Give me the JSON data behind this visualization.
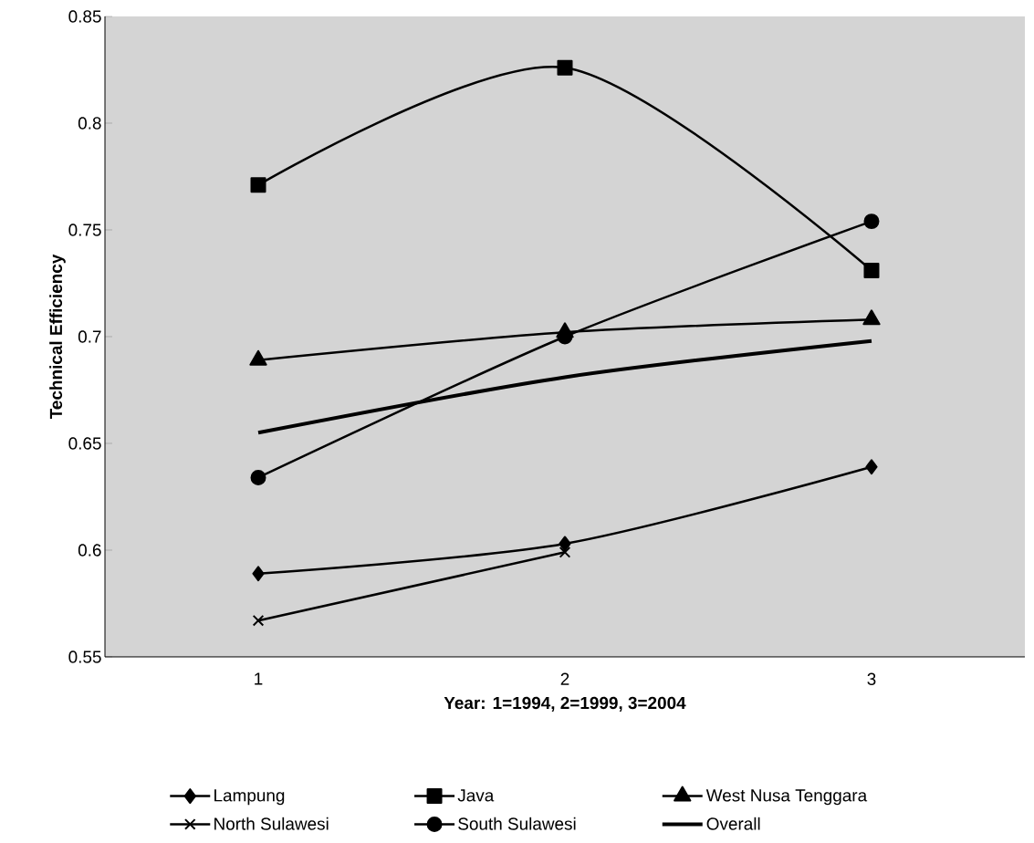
{
  "chart_data": {
    "type": "line",
    "xlabel": "Year: 1=1994, 2=1999, 3=2004",
    "ylabel": "Technical Efficiency",
    "categories": [
      "1",
      "2",
      "3"
    ],
    "ylim": [
      0.55,
      0.85
    ],
    "yticks": [
      0.55,
      0.6,
      0.65,
      0.7,
      0.75,
      0.8,
      0.85
    ],
    "grid": false,
    "legend": "bottom",
    "series": [
      {
        "name": "Lampung",
        "color": "#000000",
        "marker": "diamond",
        "values": [
          0.589,
          0.603,
          0.639
        ]
      },
      {
        "name": "Java",
        "color": "#000000",
        "marker": "square",
        "values": [
          0.771,
          0.826,
          0.731
        ]
      },
      {
        "name": "West Nusa Tenggara",
        "color": "#000000",
        "marker": "triangle",
        "values": [
          0.689,
          0.702,
          0.708
        ]
      },
      {
        "name": "North Sulawesi",
        "color": "#000000",
        "marker": "cross",
        "values": [
          0.567,
          0.599,
          null
        ]
      },
      {
        "name": "South Sulawesi",
        "color": "#000000",
        "marker": "circle",
        "values": [
          0.634,
          0.7,
          0.754
        ]
      },
      {
        "name": "Overall",
        "color": "#000000",
        "marker": "none",
        "values": [
          0.655,
          0.681,
          0.698
        ]
      }
    ]
  }
}
